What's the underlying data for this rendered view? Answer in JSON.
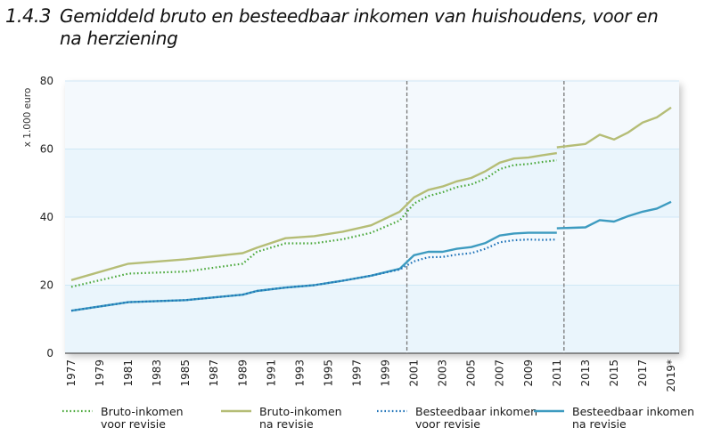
{
  "header": {
    "number": "1.4.3",
    "title": "Gemiddeld bruto en besteedbaar inkomen van huishoudens, voor en na herziening"
  },
  "colors": {
    "bruto_voor": "#4aa83a",
    "bruto_na": "#b5bd76",
    "besteedbaar_voor": "#1d72b8",
    "besteedbaar_na": "#3d9bc0",
    "band_light": "#f4f9fd",
    "band_dark": "#eaf5fc",
    "gridline": "#cfe8f6",
    "divider": "#777777"
  },
  "chart_data": {
    "type": "line",
    "title": "Gemiddeld bruto en besteedbaar inkomen van huishoudens, voor en na herziening",
    "xlabel": "",
    "ylabel": "x 1.000 euro",
    "ylim": [
      0,
      80
    ],
    "xlim": [
      1977,
      2019
    ],
    "y_ticks": [
      "0",
      "20",
      "40",
      "60",
      "80"
    ],
    "x_ticks": [
      "1977",
      "1979",
      "1981",
      "1983",
      "1985",
      "1987",
      "1989",
      "1991",
      "1993",
      "1995",
      "1997",
      "1999",
      "2001",
      "2003",
      "2005",
      "2007",
      "2009",
      "2011",
      "2013",
      "2015",
      "2017",
      "2019*"
    ],
    "grid": true,
    "revision_markers": [
      2000,
      2011
    ],
    "legend_position": "bottom",
    "series": [
      {
        "name": "Bruto-inkomen voor revisie",
        "legend_label": "Bruto-inkomen\nvoor revisie",
        "style": "dotted",
        "color_key": "bruto_voor",
        "points": [
          [
            1977,
            19.5
          ],
          [
            1981,
            23.4
          ],
          [
            1985,
            24.0
          ],
          [
            1989,
            26.3
          ],
          [
            1990,
            29.8
          ],
          [
            1992,
            32.3
          ],
          [
            1994,
            32.3
          ],
          [
            1996,
            33.5
          ],
          [
            1998,
            35.4
          ],
          [
            2000,
            39.0
          ],
          [
            2001,
            44.0
          ],
          [
            2002,
            46.2
          ],
          [
            2003,
            47.3
          ],
          [
            2004,
            48.8
          ],
          [
            2005,
            49.6
          ],
          [
            2006,
            51.3
          ],
          [
            2007,
            54.1
          ],
          [
            2008,
            55.3
          ],
          [
            2009,
            55.6
          ],
          [
            2010,
            56.2
          ],
          [
            2011,
            56.7
          ]
        ]
      },
      {
        "name": "Bruto-inkomen na revisie",
        "legend_label": "Bruto-inkomen\nna revisie",
        "style": "solid",
        "color_key": "bruto_na",
        "segments": [
          [
            [
              1977,
              21.5
            ],
            [
              1981,
              26.3
            ],
            [
              1985,
              27.6
            ],
            [
              1989,
              29.4
            ],
            [
              1990,
              31.0
            ],
            [
              1992,
              33.8
            ],
            [
              1994,
              34.4
            ],
            [
              1996,
              35.7
            ],
            [
              1998,
              37.6
            ],
            [
              2000,
              41.6
            ],
            [
              2001,
              45.8
            ],
            [
              2002,
              48.0
            ],
            [
              2003,
              49.0
            ],
            [
              2004,
              50.5
            ],
            [
              2005,
              51.5
            ],
            [
              2006,
              53.5
            ],
            [
              2007,
              56.0
            ],
            [
              2008,
              57.2
            ],
            [
              2009,
              57.5
            ],
            [
              2010,
              58.2
            ],
            [
              2011,
              58.8
            ]
          ],
          [
            [
              2011,
              60.5
            ],
            [
              2013,
              61.5
            ],
            [
              2014,
              64.2
            ],
            [
              2015,
              62.8
            ],
            [
              2016,
              64.9
            ],
            [
              2017,
              67.8
            ],
            [
              2018,
              69.3
            ],
            [
              2019,
              72.2
            ]
          ]
        ]
      },
      {
        "name": "Besteedbaar inkomen voor revisie",
        "legend_label": "Besteedbaar inkomen\nvoor revisie",
        "style": "dotted",
        "color_key": "besteedbaar_voor",
        "points": [
          [
            1977,
            12.5
          ],
          [
            1981,
            15.0
          ],
          [
            1985,
            15.6
          ],
          [
            1989,
            17.2
          ],
          [
            1990,
            18.3
          ],
          [
            1992,
            19.3
          ],
          [
            1994,
            20.0
          ],
          [
            1996,
            21.3
          ],
          [
            1998,
            22.8
          ],
          [
            2000,
            24.6
          ],
          [
            2001,
            27.0
          ],
          [
            2002,
            28.2
          ],
          [
            2003,
            28.3
          ],
          [
            2004,
            29.0
          ],
          [
            2005,
            29.4
          ],
          [
            2006,
            30.7
          ],
          [
            2007,
            32.6
          ],
          [
            2008,
            33.2
          ],
          [
            2009,
            33.4
          ],
          [
            2010,
            33.3
          ],
          [
            2011,
            33.4
          ]
        ]
      },
      {
        "name": "Besteedbaar inkomen na revisie",
        "legend_label": "Besteedbaar inkomen\nna revisie",
        "style": "solid",
        "color_key": "besteedbaar_na",
        "segments": [
          [
            [
              1977,
              12.5
            ],
            [
              1981,
              15.0
            ],
            [
              1985,
              15.6
            ],
            [
              1989,
              17.2
            ],
            [
              1990,
              18.3
            ],
            [
              1992,
              19.3
            ],
            [
              1994,
              20.0
            ],
            [
              1996,
              21.3
            ],
            [
              1998,
              22.8
            ],
            [
              2000,
              24.8
            ],
            [
              2001,
              28.8
            ],
            [
              2002,
              29.8
            ],
            [
              2003,
              29.8
            ],
            [
              2004,
              30.7
            ],
            [
              2005,
              31.2
            ],
            [
              2006,
              32.4
            ],
            [
              2007,
              34.6
            ],
            [
              2008,
              35.2
            ],
            [
              2009,
              35.4
            ],
            [
              2010,
              35.4
            ],
            [
              2011,
              35.4
            ]
          ],
          [
            [
              2011,
              36.7
            ],
            [
              2013,
              37.0
            ],
            [
              2014,
              39.1
            ],
            [
              2015,
              38.7
            ],
            [
              2016,
              40.3
            ],
            [
              2017,
              41.6
            ],
            [
              2018,
              42.5
            ],
            [
              2019,
              44.5
            ]
          ]
        ]
      }
    ]
  }
}
